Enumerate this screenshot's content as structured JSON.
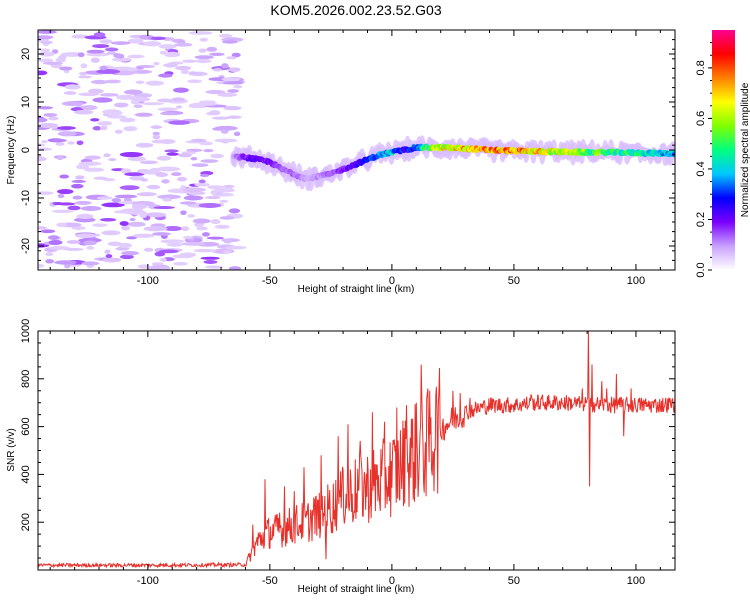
{
  "title": "KOM5.2026.002.23.52.G03",
  "colors": {
    "snr_line": "#e8302a",
    "axis": "#000000",
    "background": "#ffffff"
  },
  "chart_data": [
    {
      "type": "heatmap",
      "name": "spectrogram",
      "xlabel": "Height of straight line (km)",
      "ylabel": "Frequency (Hz)",
      "xlim": [
        -145,
        116
      ],
      "ylim": [
        -25,
        25
      ],
      "xticks": [
        -100,
        -50,
        0,
        50,
        100
      ],
      "xtick_labels": [
        "-100",
        "-50",
        "0",
        "50",
        "100"
      ],
      "yticks": [
        -20,
        -10,
        0,
        10,
        20
      ],
      "ytick_labels": [
        "-20",
        "-10",
        "0",
        "10",
        "20"
      ],
      "colorbar": {
        "label": "Normalized spectral amplitude",
        "range": [
          0,
          0.95
        ],
        "ticks": [
          0.0,
          0.2,
          0.4,
          0.6,
          0.8
        ],
        "tick_labels": [
          "0.0",
          "0.2",
          "0.4",
          "0.6",
          "0.8"
        ],
        "colors": [
          "#ffffff",
          "#c8a0ff",
          "#7a00ff",
          "#0000ff",
          "#00c8ff",
          "#00ff80",
          "#80ff00",
          "#ffff00",
          "#ff8000",
          "#ff0000",
          "#ff0090"
        ]
      },
      "noise_region": {
        "x_range": [
          -145,
          -63
        ],
        "frequency_range": [
          -25,
          25
        ]
      },
      "signal_ridge": {
        "x": [
          -65,
          -60,
          -55,
          -50,
          -45,
          -40,
          -35,
          -30,
          -25,
          -20,
          -15,
          -10,
          -5,
          0,
          5,
          10,
          15,
          20,
          30,
          40,
          50,
          60,
          70,
          80,
          90,
          100,
          110,
          116
        ],
        "frequency": [
          -1.5,
          -1.5,
          -2,
          -2.5,
          -4,
          -5,
          -6,
          -5.5,
          -5,
          -4,
          -3,
          -2,
          -1,
          -0.5,
          0,
          0.5,
          0.5,
          0.5,
          0.3,
          0,
          -0.2,
          -0.3,
          -0.4,
          -0.5,
          -0.5,
          -0.6,
          -0.7,
          -0.7
        ],
        "amplitude": [
          0.1,
          0.2,
          0.25,
          0.2,
          0.15,
          0.15,
          0.1,
          0.12,
          0.15,
          0.2,
          0.25,
          0.3,
          0.4,
          0.45,
          0.3,
          0.35,
          0.6,
          0.7,
          0.8,
          0.85,
          0.85,
          0.75,
          0.7,
          0.6,
          0.55,
          0.5,
          0.45,
          0.4
        ]
      }
    },
    {
      "type": "line",
      "name": "snr",
      "xlabel": "Height of straight line (km)",
      "ylabel": "SNR (v/v)",
      "xlim": [
        -145,
        116
      ],
      "ylim": [
        0,
        1000
      ],
      "xticks": [
        -100,
        -50,
        0,
        50,
        100
      ],
      "xtick_labels": [
        "-100",
        "-50",
        "0",
        "50",
        "100"
      ],
      "yticks": [
        200,
        400,
        600,
        800,
        1000
      ],
      "ytick_labels": [
        "200",
        "400",
        "600",
        "800",
        "1000"
      ],
      "trend": {
        "x": [
          -145,
          -100,
          -60,
          -55,
          -50,
          -45,
          -40,
          -35,
          -30,
          -25,
          -20,
          -15,
          -10,
          -5,
          0,
          5,
          10,
          15,
          20,
          25,
          30,
          40,
          50,
          60,
          70,
          80,
          90,
          100,
          110,
          116
        ],
        "y": [
          20,
          20,
          22,
          120,
          160,
          170,
          190,
          200,
          230,
          260,
          300,
          330,
          350,
          370,
          400,
          450,
          490,
          530,
          590,
          630,
          660,
          690,
          690,
          700,
          700,
          695,
          690,
          690,
          690,
          695
        ]
      },
      "spikes": {
        "x": [
          -57,
          -52,
          -46,
          -44,
          -40,
          -37,
          -36,
          -32,
          -29,
          -27,
          -22,
          -20,
          -18,
          -13,
          -8,
          -3,
          2,
          6,
          10,
          12,
          15,
          18,
          25,
          28,
          32,
          57,
          78,
          79.5,
          80.5,
          81,
          82,
          86,
          88,
          92,
          95,
          98
        ],
        "y": [
          190,
          380,
          240,
          350,
          330,
          130,
          430,
          300,
          480,
          45,
          560,
          420,
          610,
          540,
          660,
          620,
          680,
          690,
          700,
          860,
          580,
          730,
          750,
          740,
          720,
          735,
          760,
          700,
          1000,
          350,
          860,
          790,
          760,
          820,
          560,
          760
        ]
      }
    }
  ]
}
